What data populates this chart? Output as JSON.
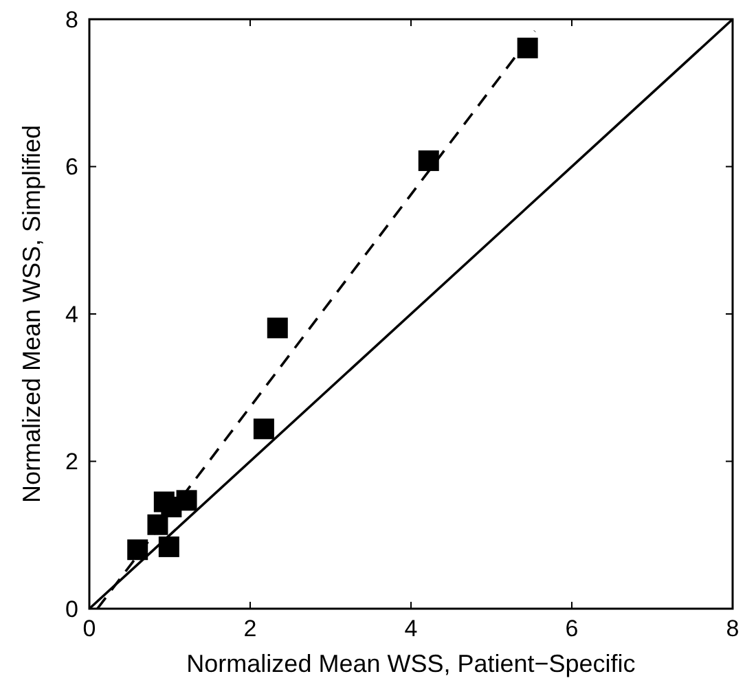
{
  "chart_data": {
    "type": "scatter",
    "xlabel": "Normalized Mean WSS, Patient−Specific",
    "ylabel": "Normalized Mean WSS, Simplified",
    "xlim": [
      0,
      8
    ],
    "ylim": [
      0,
      8
    ],
    "xticks": [
      0,
      2,
      4,
      6,
      8
    ],
    "yticks": [
      0,
      2,
      4,
      6,
      8
    ],
    "grid": false,
    "series": [
      {
        "marker": "square",
        "color": "#000000",
        "x": [
          0.6,
          0.85,
          0.93,
          1.02,
          0.99,
          1.21,
          2.17,
          2.34,
          4.22,
          5.45
        ],
        "values": [
          0.8,
          1.14,
          1.45,
          1.38,
          0.84,
          1.47,
          2.44,
          3.81,
          6.08,
          7.61
        ]
      },
      {
        "type": "line",
        "line_style": "dashed",
        "marker": "none",
        "color": "#000000",
        "x": [
          0.1,
          5.54
        ],
        "values": [
          0,
          7.84
        ]
      },
      {
        "type": "line",
        "line_style": "solid",
        "marker": "none",
        "color": "#000000",
        "x": [
          0,
          8
        ],
        "values": [
          0,
          8
        ]
      }
    ]
  }
}
